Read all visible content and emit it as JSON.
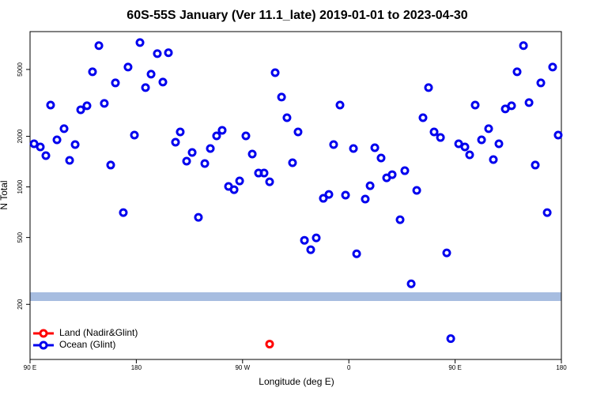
{
  "chart_data": {
    "type": "scatter",
    "title": "60S-55S January (Ver 11.1_late)   2019-01-01 to 2023-04-30",
    "x_label": "Longitude (deg E)",
    "y_label": "N Total",
    "xlim": [
      -270,
      180
    ],
    "xticks": [
      {
        "value": -270,
        "label": "90 E"
      },
      {
        "value": -180,
        "label": "180"
      },
      {
        "value": -90,
        "label": "90 W"
      },
      0,
      {
        "value": 90,
        "label": "90 E"
      },
      180
    ],
    "ylim": [
      94,
      8400
    ],
    "log_y": true,
    "yticks": [
      200,
      500,
      1000,
      2000,
      5000
    ],
    "legend": "bottom-left",
    "series": [
      {
        "name": "Land (Nadir&Glint)",
        "color": "#ff0000",
        "x": [
          -67.1
        ],
        "values": [
          116
        ]
      },
      {
        "name": "Ocean (Glint)",
        "color": "#0000ee",
        "x": [
          -266.6,
          -261.3,
          -256.6,
          -252.6,
          -247.2,
          -241.2,
          -236.5,
          -231.8,
          -227.1,
          -221.8,
          -217.1,
          -211.7,
          -207.1,
          -201.7,
          -197.7,
          -191.0,
          -187.0,
          -181.6,
          -176.9,
          -172.2,
          -167.5,
          -162.2,
          -157.5,
          -152.8,
          -146.8,
          -142.8,
          -137.4,
          -132.7,
          -127.4,
          -122.0,
          -117.3,
          -112.0,
          -107.3,
          -101.9,
          -97.2,
          -92.5,
          -87.2,
          -81.8,
          -76.5,
          -71.8,
          -67.1,
          -62.4,
          -57.0,
          -52.4,
          -47.7,
          -43.0,
          -37.6,
          -32.3,
          -27.6,
          -21.6,
          -16.9,
          -12.9,
          -7.5,
          -2.8,
          3.9,
          6.6,
          13.9,
          18.0,
          22.0,
          27.3,
          32.0,
          36.7,
          43.4,
          47.4,
          52.8,
          57.5,
          62.8,
          67.5,
          72.2,
          77.6,
          82.9,
          86.3,
          93.0,
          98.3,
          102.3,
          107.0,
          112.4,
          118.4,
          122.4,
          127.1,
          132.5,
          137.8,
          142.5,
          147.9,
          152.6,
          157.9,
          162.6,
          168.0,
          172.6,
          177.3
        ],
        "values": [
          1806,
          1730,
          1535,
          3070,
          1907,
          2220,
          1439,
          1786,
          2878,
          3040,
          4843,
          6928,
          3140,
          1349,
          4159,
          703,
          5166,
          2035,
          7230,
          3899,
          4689,
          6215,
          4207,
          6285,
          1846,
          2125,
          1423,
          1603,
          659,
          1377,
          1693,
          2013,
          2172,
          1006,
          963,
          1085,
          2013,
          1569,
          1209,
          1209,
          1073,
          4786,
          3423,
          2582,
          1393,
          2125,
          481,
          423,
          497,
          855,
          902,
          1786,
          3070,
          893,
          1693,
          400,
          846,
          1016,
          1710,
          1486,
          1132,
          1183,
          638,
          1249,
          265,
          953,
          2582,
          3899,
          2125,
          1968,
          405,
          125,
          1806,
          1730,
          1551,
          3070,
          1907,
          2220,
          1454,
          1806,
          2911,
          3040,
          4843,
          6928,
          3174,
          1349,
          4159,
          703,
          5166,
          2035
        ]
      }
    ]
  }
}
